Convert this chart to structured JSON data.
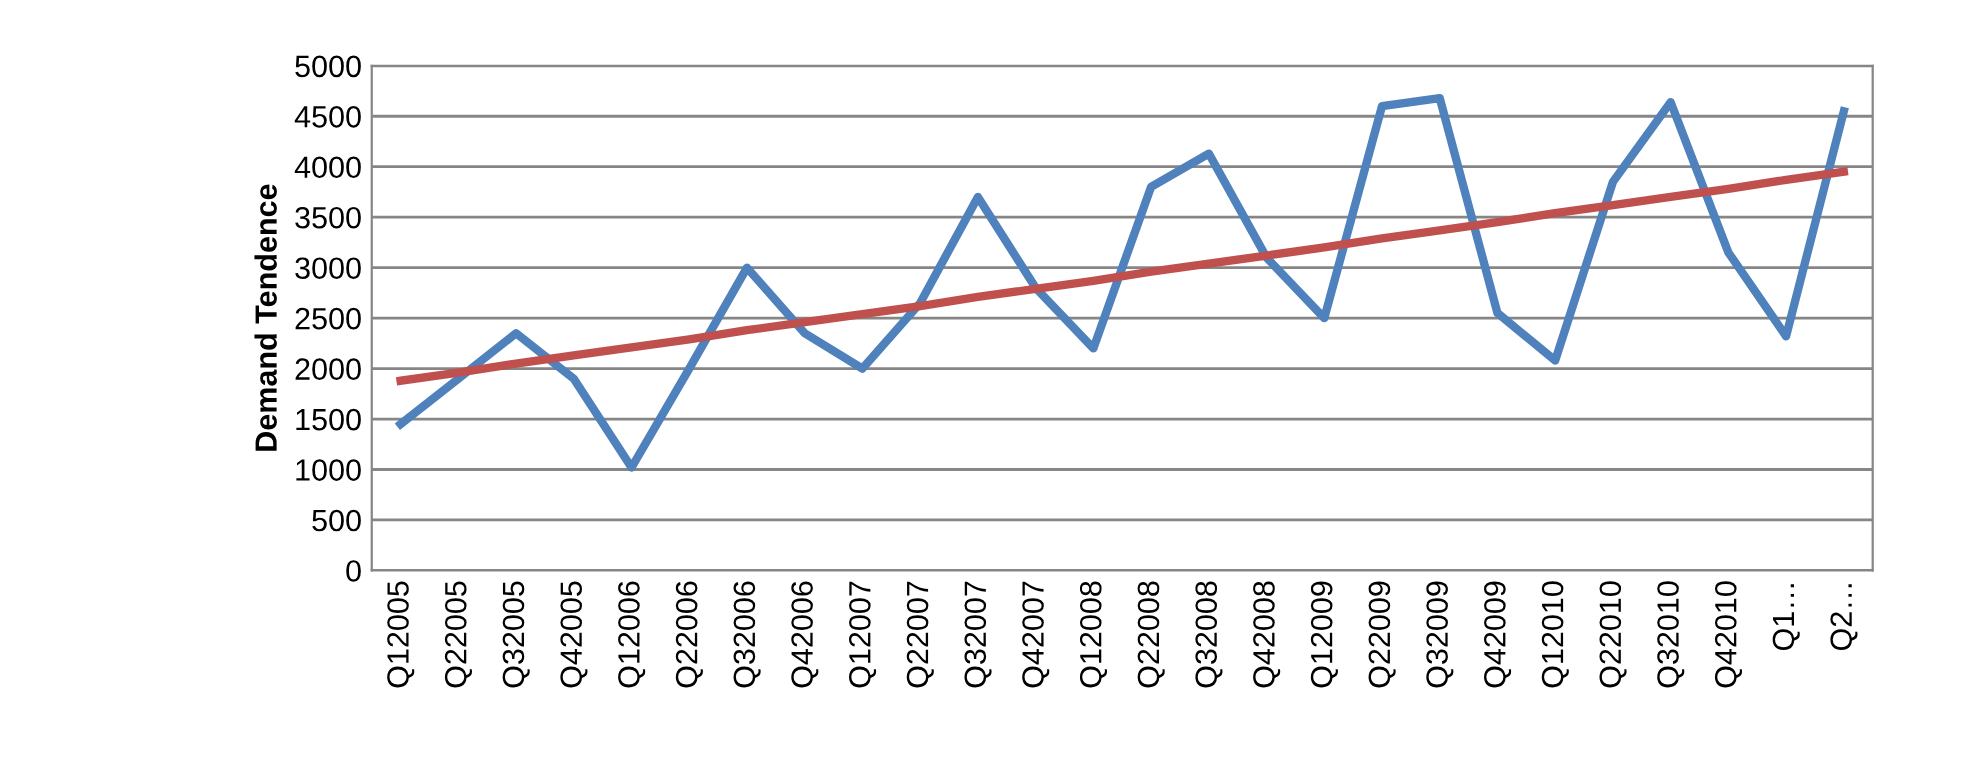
{
  "chart_data": {
    "type": "line",
    "ylabel": "Demand Tendence",
    "categories": [
      "Q12005",
      "Q22005",
      "Q32005",
      "Q42005",
      "Q12006",
      "Q22006",
      "Q32006",
      "Q42006",
      "Q12007",
      "Q22007",
      "Q32007",
      "Q42007",
      "Q12008",
      "Q22008",
      "Q32008",
      "Q42008",
      "Q12009",
      "Q22009",
      "Q32009",
      "Q42009",
      "Q12010",
      "Q22010",
      "Q32010",
      "Q42010",
      "Q1…",
      "Q2…"
    ],
    "series": [
      {
        "color": "#4f81bd",
        "values": [
          1450,
          1900,
          2350,
          1900,
          1020,
          2000,
          3000,
          2350,
          2000,
          2650,
          3700,
          2800,
          2200,
          3800,
          4130,
          3100,
          2500,
          4600,
          4680,
          2550,
          2080,
          3850,
          4640,
          3150,
          2320,
          4550
        ]
      },
      {
        "color": "#c0504d",
        "values": [
          1880,
          1960,
          2050,
          2130,
          2210,
          2290,
          2380,
          2460,
          2540,
          2620,
          2710,
          2790,
          2870,
          2960,
          3040,
          3120,
          3200,
          3290,
          3370,
          3450,
          3540,
          3620,
          3700,
          3780,
          3870,
          3950
        ]
      }
    ],
    "ylim": [
      0,
      5000
    ],
    "yticks": [
      0,
      500,
      1000,
      1500,
      2000,
      2500,
      3000,
      3500,
      4000,
      4500,
      5000
    ],
    "grid": "y",
    "marker": "none",
    "line_style": "solid"
  }
}
